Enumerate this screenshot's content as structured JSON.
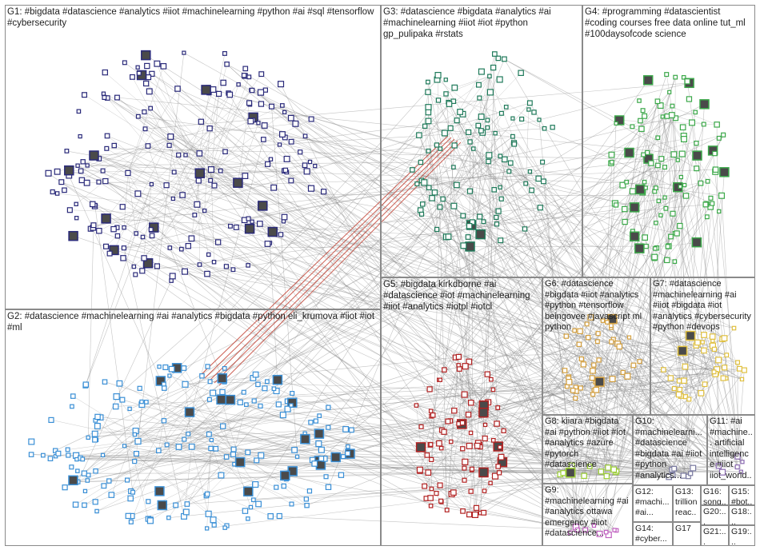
{
  "graph": {
    "groups": [
      {
        "id": "G1",
        "label": "G1: #bigdata #datascience #analytics #iiot #machinelearning #python #ai #sql #tensorflow #cybersecurity",
        "color": "#2a2a7a"
      },
      {
        "id": "G2",
        "label": "G2: #datascience #machinelearning #ai #analytics #bigdata #python eli_krumova #iiot #iot #ml",
        "color": "#3a8fd6"
      },
      {
        "id": "G3",
        "label": "G3: #datascience #bigdata #analytics #ai #machinelearning #iiot #iot #python gp_pulipaka #rstats",
        "color": "#1f7a5a"
      },
      {
        "id": "G4",
        "label": "G4: #programming #datascientist #coding courses free data online tut_ml #100daysofcode science",
        "color": "#3ca84a"
      },
      {
        "id": "G5",
        "label": "G5: #bigdata kirkdborne #ai #datascience #iot #machinelearning #iiot #analytics #iotpl #iotcl",
        "color": "#b22222"
      },
      {
        "id": "G6",
        "label": "G6: #datascience #bigdata #iiot #analytics #python #tensorflow beingovee #javascript ml python",
        "color": "#d4a040"
      },
      {
        "id": "G7",
        "label": "G7: #datascience #machinelearning #ai #iiot #bigdata #iot #analytics #cybersecurity #python #devops",
        "color": "#e0c040"
      },
      {
        "id": "G8",
        "label": "G8: kiiara #bigdata #ai #python #iiot #iot #analytics #azure #pytorch #datascience",
        "color": "#9acd32"
      },
      {
        "id": "G9",
        "label": "G9: #machinelearning #ai #analytics ottawa emergency #iiot #datascience...",
        "color": "#c060c0"
      },
      {
        "id": "G10",
        "label": "G10: #machinelearni... #datascience #bigdata #ai #iiot #python #analytics...",
        "color": "#7a7aa0"
      },
      {
        "id": "G11",
        "label": "G11: #ai #machine... artificial intelligence #iiot iiot_world...",
        "color": "#8a6ab0"
      },
      {
        "id": "G12",
        "label": "G12: #machi... #ai...",
        "color": "#8080c0"
      },
      {
        "id": "G13",
        "label": "G13: trillion reac...",
        "color": "#909090"
      },
      {
        "id": "G14",
        "label": "G14: #cyber...",
        "color": "#808080"
      },
      {
        "id": "G15",
        "label": "G15: #bot...",
        "color": "#909090"
      },
      {
        "id": "G16",
        "label": "G16: song...",
        "color": "#a0a0a0"
      },
      {
        "id": "G17",
        "label": "G17",
        "color": "#a0a0a0"
      },
      {
        "id": "G18",
        "label": "G18:...",
        "color": "#a0a0a0"
      },
      {
        "id": "G19",
        "label": "G19:...",
        "color": "#a0a0a0"
      },
      {
        "id": "G20",
        "label": "G20:...",
        "color": "#a0a0a0"
      },
      {
        "id": "G21",
        "label": "G21:...",
        "color": "#a0a0a0"
      }
    ],
    "edge_colors": {
      "default": "#8c8c8c",
      "highlight": "#c0392b"
    }
  }
}
